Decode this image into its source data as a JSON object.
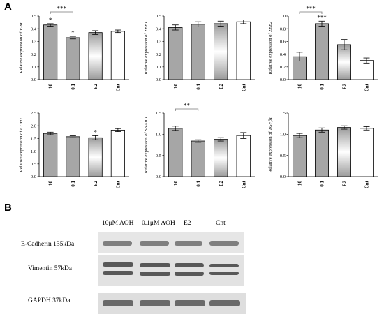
{
  "panel_labels": {
    "a": "A",
    "b": "B"
  },
  "colors": {
    "gray_bar": "#a6a6a6",
    "open_bar": "#ffffff",
    "stroke": "#000000"
  },
  "chart_data": [
    {
      "type": "bar",
      "ylabel_prefix": "Relative expression of ",
      "gene": "VIM",
      "categories": [
        "10",
        "0.1",
        "E2",
        "Cnt"
      ],
      "values": [
        0.43,
        0.33,
        0.37,
        0.38
      ],
      "errors": [
        0.01,
        0.01,
        0.015,
        0.01
      ],
      "ylim": [
        0,
        0.5
      ],
      "yticks": [
        "0.0",
        "0.1",
        "0.2",
        "0.3",
        "0.4",
        "0.5"
      ],
      "styles": [
        "gray",
        "gray",
        "gradient",
        "open"
      ],
      "stars": [
        {
          "bar": 0,
          "text": "*"
        },
        {
          "bar": 1,
          "text": "*"
        }
      ],
      "brackets": [
        {
          "from": 0,
          "to": 1,
          "text": "***"
        }
      ]
    },
    {
      "type": "bar",
      "ylabel_prefix": "Relative expression of ",
      "gene": "ZEB1",
      "categories": [
        "10",
        "0.1",
        "E2",
        "Cnt"
      ],
      "values": [
        0.41,
        0.435,
        0.44,
        0.455
      ],
      "errors": [
        0.02,
        0.02,
        0.02,
        0.015
      ],
      "ylim": [
        0,
        0.5
      ],
      "yticks": [
        "0.0",
        "0.1",
        "0.2",
        "0.3",
        "0.4",
        "0.5"
      ],
      "styles": [
        "gray",
        "gray",
        "gradient",
        "open"
      ],
      "stars": [],
      "brackets": []
    },
    {
      "type": "bar",
      "ylabel_prefix": "Relative expression of ",
      "gene": "ZEB2",
      "categories": [
        "10",
        "0.1",
        "E2",
        "Cnt"
      ],
      "values": [
        0.36,
        0.88,
        0.55,
        0.3
      ],
      "errors": [
        0.07,
        0.04,
        0.08,
        0.04
      ],
      "ylim": [
        0,
        1.0
      ],
      "yticks": [
        "0.0",
        "0.2",
        "0.4",
        "0.6",
        "0.8",
        "1.0"
      ],
      "styles": [
        "gray",
        "gray",
        "gradient",
        "open"
      ],
      "stars": [
        {
          "bar": 1,
          "text": "***"
        }
      ],
      "brackets": [
        {
          "from": 0,
          "to": 1,
          "text": "***"
        }
      ]
    },
    {
      "type": "bar",
      "ylabel_prefix": "Relative expression of ",
      "gene": "CDH1",
      "categories": [
        "10",
        "0.1",
        "E2",
        "Cnt"
      ],
      "values": [
        1.7,
        1.57,
        1.53,
        1.83
      ],
      "errors": [
        0.05,
        0.04,
        0.08,
        0.06
      ],
      "ylim": [
        0,
        2.5
      ],
      "yticks": [
        "0.0",
        "0.5",
        "1.0",
        "1.5",
        "2.0",
        "2.5"
      ],
      "styles": [
        "gray",
        "gray",
        "gradient",
        "open"
      ],
      "stars": [
        {
          "bar": 2,
          "text": "*"
        }
      ],
      "brackets": []
    },
    {
      "type": "bar",
      "ylabel_prefix": "Relative expression of ",
      "gene": "SNAIL1",
      "categories": [
        "10",
        "0.1",
        "E2",
        "Cnt"
      ],
      "values": [
        1.14,
        0.84,
        0.88,
        0.97
      ],
      "errors": [
        0.05,
        0.03,
        0.04,
        0.07
      ],
      "ylim": [
        0,
        1.5
      ],
      "yticks": [
        "0.0",
        "0.5",
        "1.0",
        "1.5"
      ],
      "styles": [
        "gray",
        "gray",
        "gradient",
        "open"
      ],
      "stars": [],
      "brackets": [
        {
          "from": 0,
          "to": 1,
          "text": "**"
        }
      ]
    },
    {
      "type": "bar",
      "ylabel_prefix": "Relative expression of ",
      "gene": "TGFβ1",
      "categories": [
        "10",
        "0.1",
        "E2",
        "Cnt"
      ],
      "values": [
        0.97,
        1.1,
        1.16,
        1.14
      ],
      "errors": [
        0.05,
        0.05,
        0.04,
        0.04
      ],
      "ylim": [
        0,
        1.5
      ],
      "yticks": [
        "0.0",
        "0.5",
        "1.0",
        "1.5"
      ],
      "styles": [
        "gray",
        "gray",
        "gradient",
        "open"
      ],
      "stars": [],
      "brackets": []
    }
  ],
  "blot": {
    "lanes": [
      "10μM AOH",
      "0.1μM AOH",
      "E2",
      "Cnt"
    ],
    "rows": [
      {
        "label": "E-Cadherin 135kDa"
      },
      {
        "label": "Vimentin 57kDa"
      },
      {
        "label": "GAPDH 37kDa"
      }
    ]
  }
}
